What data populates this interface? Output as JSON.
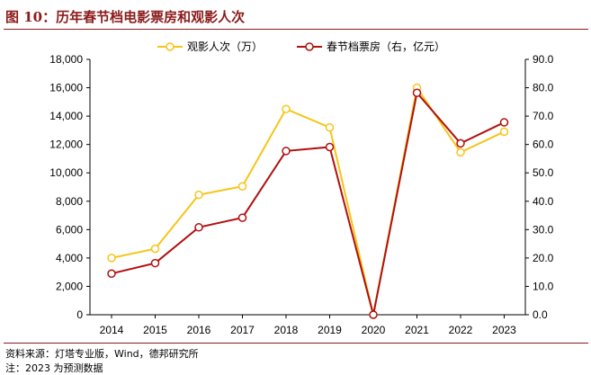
{
  "figure": {
    "title": "图 10：历年春节档电影票房和观影人次",
    "source_line": "资料来源：灯塔专业版，Wind，德邦研究所",
    "note_line": "注：2023 为预测数据"
  },
  "colors": {
    "title": "#8B1A1A",
    "attendance": "#F5C518",
    "box_office": "#B01010",
    "axis": "#000000"
  },
  "chart_data": {
    "type": "line",
    "categories": [
      "2014",
      "2015",
      "2016",
      "2017",
      "2018",
      "2019",
      "2020",
      "2021",
      "2022",
      "2023"
    ],
    "series": [
      {
        "name": "观影人次（万）",
        "axis": "left",
        "values": [
          4000,
          4650,
          8450,
          9050,
          14500,
          13200,
          0,
          16000,
          11450,
          12900
        ]
      },
      {
        "name": "春节档票房（右，亿元）",
        "axis": "right",
        "values": [
          14.5,
          18.2,
          30.8,
          34.2,
          57.7,
          59.1,
          0,
          78.2,
          60.4,
          67.8
        ]
      }
    ],
    "left_axis": {
      "min": 0,
      "max": 18000,
      "ticks": [
        "0",
        "2,000",
        "4,000",
        "6,000",
        "8,000",
        "10,000",
        "12,000",
        "14,000",
        "16,000",
        "18,000"
      ]
    },
    "right_axis": {
      "min": 0,
      "max": 90,
      "ticks": [
        "0.0",
        "10.0",
        "20.0",
        "30.0",
        "40.0",
        "50.0",
        "60.0",
        "70.0",
        "80.0",
        "90.0"
      ]
    },
    "grid": false,
    "legend_position": "top-center"
  }
}
